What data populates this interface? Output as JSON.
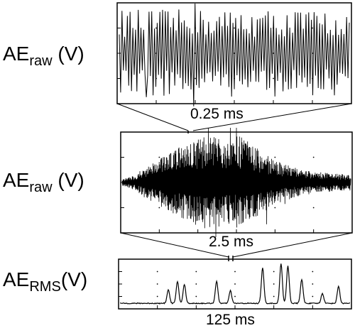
{
  "chart_data": [
    {
      "type": "line",
      "ylabel": {
        "main": "AE",
        "sub": "raw",
        "unit": "(V)"
      },
      "time_scale": "0.25 ms",
      "waveform": "dense-oscillation",
      "amplitude_range": [
        -1,
        1
      ],
      "grid": "dotted"
    },
    {
      "type": "line",
      "ylabel": {
        "main": "AE",
        "sub": "raw",
        "unit": "(V)"
      },
      "time_scale": "2.5 ms",
      "waveform": "burst-envelope",
      "amplitude_range": [
        -1,
        1
      ],
      "grid": "dotted"
    },
    {
      "type": "line",
      "ylabel": {
        "main": "AE",
        "sub": "RMS",
        "unit": "(V)"
      },
      "time_scale": "125 ms",
      "waveform": "rms-peaks",
      "peaks": [
        {
          "t": 0.21,
          "v": 0.3
        },
        {
          "t": 0.25,
          "v": 0.48
        },
        {
          "t": 0.28,
          "v": 0.42
        },
        {
          "t": 0.42,
          "v": 0.48
        },
        {
          "t": 0.48,
          "v": 0.28
        },
        {
          "t": 0.62,
          "v": 0.78
        },
        {
          "t": 0.7,
          "v": 0.88
        },
        {
          "t": 0.73,
          "v": 0.82
        },
        {
          "t": 0.79,
          "v": 0.52
        },
        {
          "t": 0.88,
          "v": 0.22
        },
        {
          "t": 0.95,
          "v": 0.38
        }
      ],
      "baseline": 0.08,
      "grid": "dotted"
    }
  ]
}
